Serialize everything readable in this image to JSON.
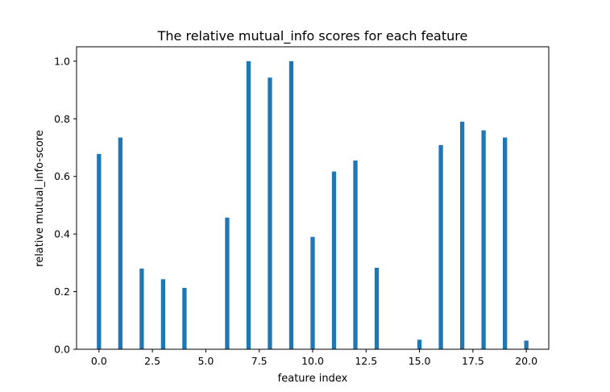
{
  "chart_data": {
    "type": "bar",
    "title": "The relative mutual_info scores for each feature",
    "xlabel": "feature index",
    "ylabel": "relative mutual_info-score",
    "x": [
      0,
      1,
      2,
      3,
      4,
      5,
      6,
      7,
      8,
      9,
      10,
      11,
      12,
      13,
      14,
      15,
      16,
      17,
      18,
      19,
      20
    ],
    "values": [
      0.678,
      0.735,
      0.28,
      0.243,
      0.213,
      0.0,
      0.457,
      1.0,
      0.943,
      1.0,
      0.39,
      0.617,
      0.655,
      0.283,
      0.0,
      0.033,
      0.709,
      0.79,
      0.76,
      0.735,
      0.03
    ],
    "xlim": [
      -1.05,
      21.05
    ],
    "ylim": [
      0,
      1.05
    ],
    "xticks": [
      0.0,
      2.5,
      5.0,
      7.5,
      10.0,
      12.5,
      15.0,
      17.5,
      20.0
    ],
    "xtick_labels": [
      "0.0",
      "2.5",
      "5.0",
      "7.5",
      "10.0",
      "12.5",
      "15.0",
      "17.5",
      "20.0"
    ],
    "yticks": [
      0.0,
      0.2,
      0.4,
      0.6,
      0.8,
      1.0
    ],
    "ytick_labels": [
      "0.0",
      "0.2",
      "0.4",
      "0.6",
      "0.8",
      "1.0"
    ],
    "bar_width": 0.2,
    "grid": false,
    "legend": "none",
    "colors": {
      "bar": "#1f77b4",
      "axis": "#000000",
      "background": "#ffffff"
    }
  }
}
